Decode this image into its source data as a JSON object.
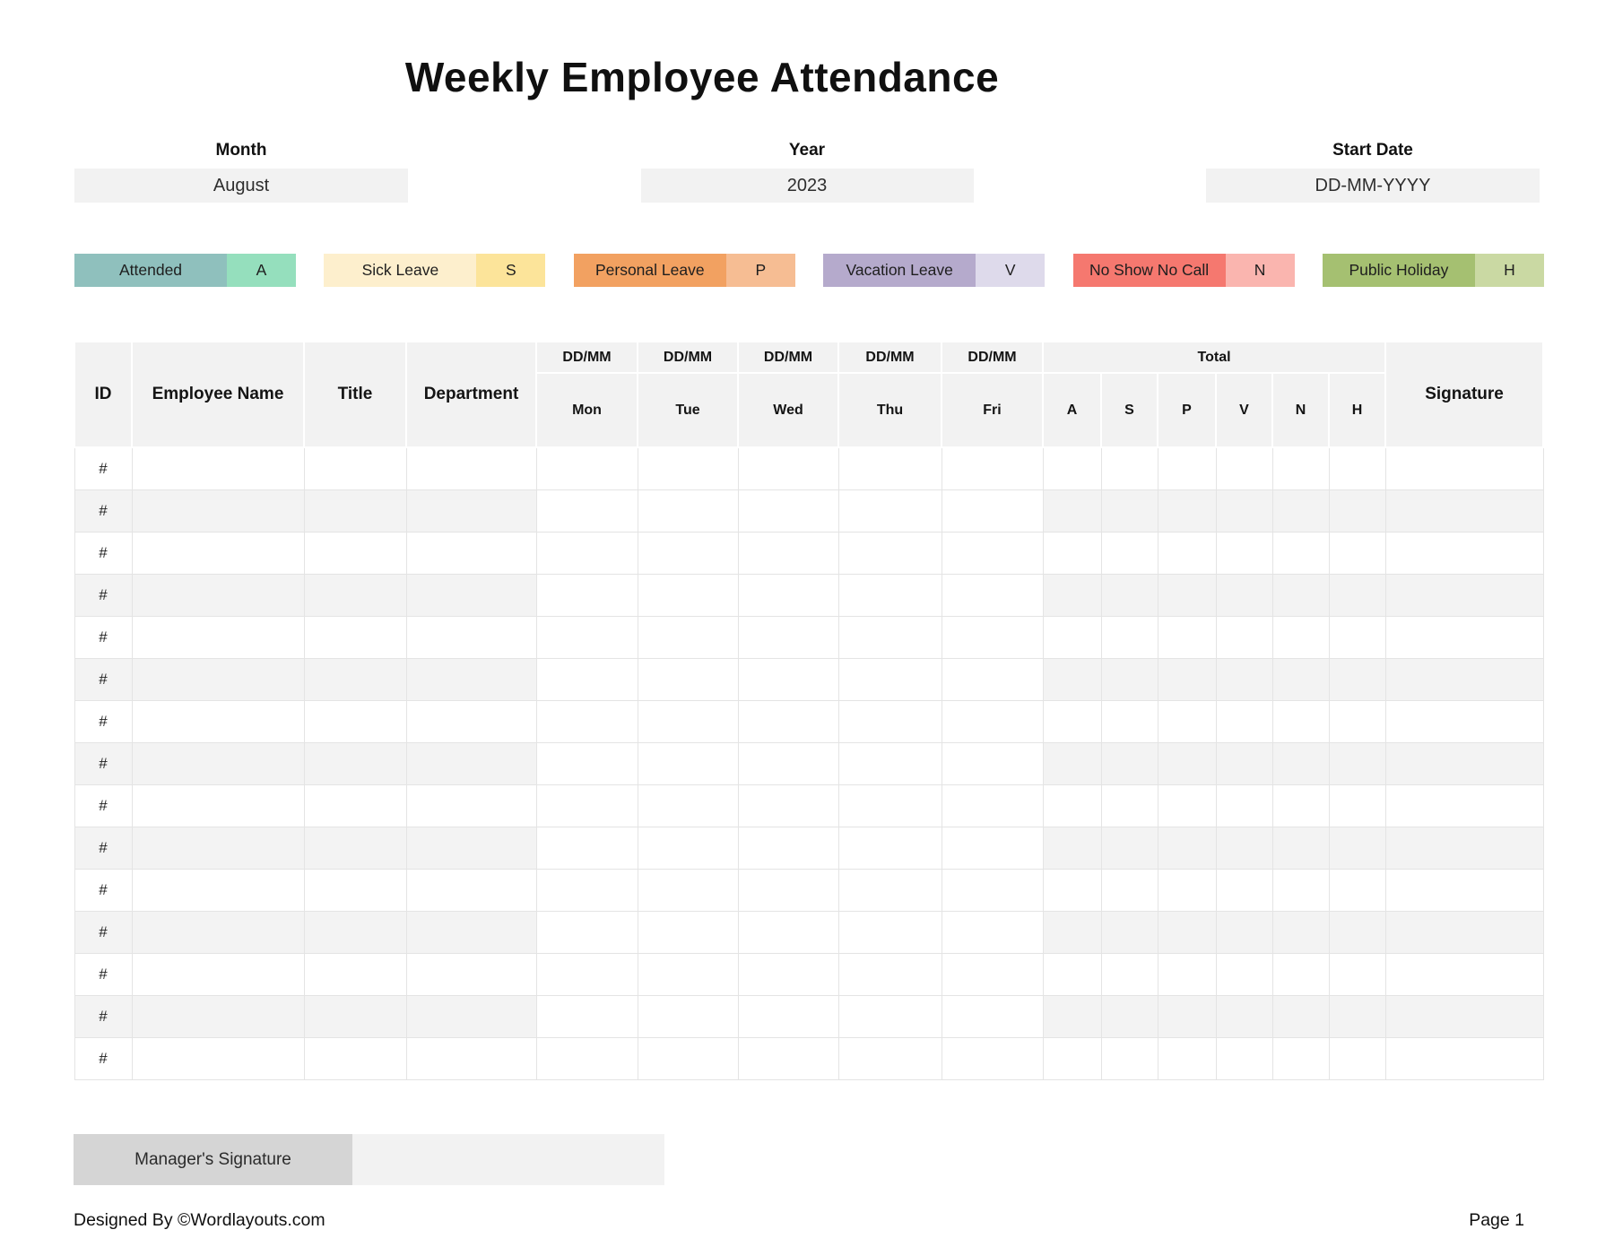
{
  "title": "Weekly Employee Attendance",
  "fields": [
    {
      "label": "Month",
      "value": "August"
    },
    {
      "label": "Year",
      "value": "2023"
    },
    {
      "label": "Start Date",
      "value": "DD-MM-YYYY"
    }
  ],
  "legend": [
    {
      "label": "Attended",
      "code": "A",
      "label_color": "#8fc0bd",
      "code_color": "#95dfbd"
    },
    {
      "label": "Sick Leave",
      "code": "S",
      "label_color": "#fdefcd",
      "code_color": "#fce49a"
    },
    {
      "label": "Personal Leave",
      "code": "P",
      "label_color": "#f2a161",
      "code_color": "#f6bd93"
    },
    {
      "label": "Vacation Leave",
      "code": "V",
      "label_color": "#b5aacc",
      "code_color": "#dedaeb"
    },
    {
      "label": "No Show No Call",
      "code": "N",
      "label_color": "#f5786f",
      "code_color": "#fab5af"
    },
    {
      "label": "Public Holiday",
      "code": "H",
      "label_color": "#a5c071",
      "code_color": "#cad9a3"
    }
  ],
  "table": {
    "static_headers": [
      "ID",
      "Employee Name",
      "Title",
      "Department"
    ],
    "date_header": "DD/MM",
    "days": [
      "Mon",
      "Tue",
      "Wed",
      "Thu",
      "Fri"
    ],
    "total_header": "Total",
    "total_codes": [
      "A",
      "S",
      "P",
      "V",
      "N",
      "H"
    ],
    "signature_header": "Signature",
    "row_marker": "#",
    "row_count": 15
  },
  "manager_signature_label": "Manager's Signature",
  "footer": {
    "left": "Designed By ©Wordlayouts.com",
    "right": "Page 1"
  }
}
